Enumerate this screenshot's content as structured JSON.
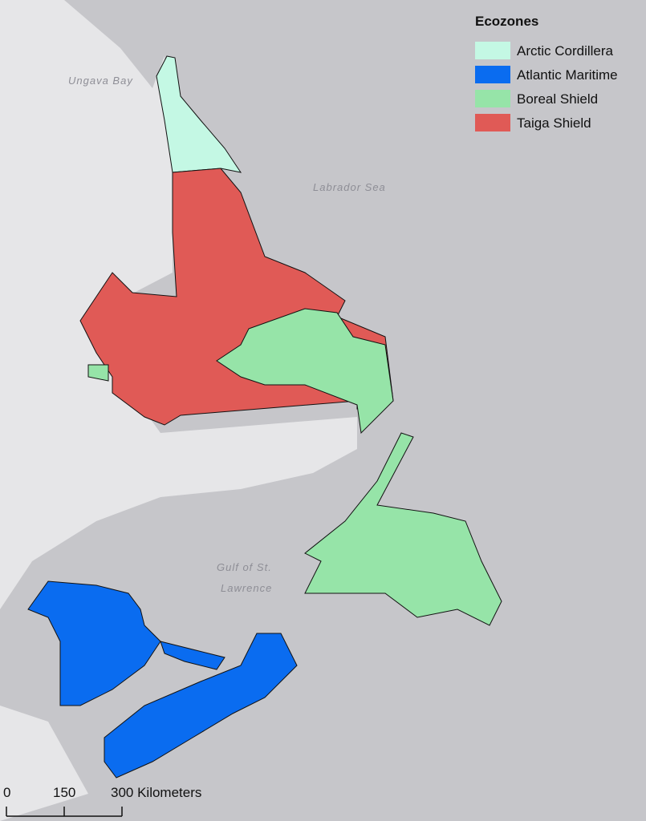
{
  "legend": {
    "title": "Ecozones",
    "items": [
      {
        "name": "Arctic Cordillera",
        "color": "#c4f8e4"
      },
      {
        "name": "Atlantic Maritime",
        "color": "#0a6cf0"
      },
      {
        "name": "Boreal Shield",
        "color": "#96e4a8"
      },
      {
        "name": "Taiga Shield",
        "color": "#e05a56"
      }
    ]
  },
  "places": [
    "Ungava Bay",
    "Labrador Sea",
    "Gulf of St.",
    "Lawrence"
  ],
  "scale_bar": {
    "ticks": [
      0,
      150,
      {
        "value": 300,
        "label": "300 Kilometers"
      }
    ],
    "max": 300
  }
}
